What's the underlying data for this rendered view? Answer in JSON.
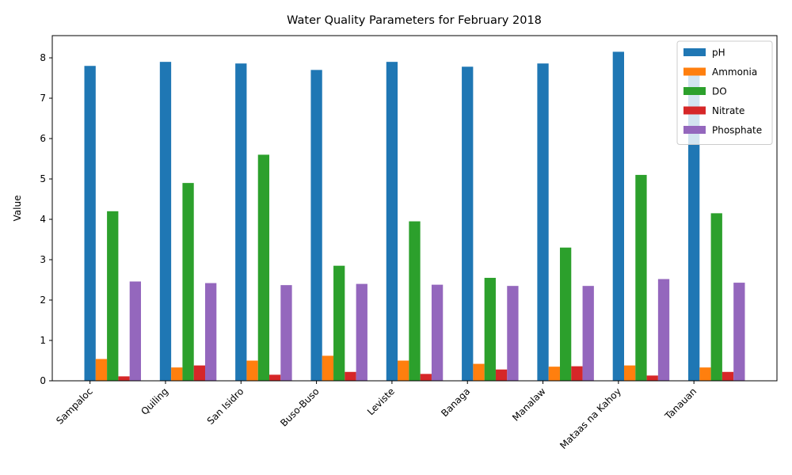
{
  "chart_data": {
    "type": "bar",
    "title": "Water Quality Parameters for February 2018",
    "xlabel": "",
    "ylabel": "Value",
    "ylim": [
      0,
      8.55
    ],
    "yticks": [
      "0",
      "1",
      "2",
      "3",
      "4",
      "5",
      "6",
      "7",
      "8"
    ],
    "grid": false,
    "legend_position": "top-right",
    "categories": [
      "Sampaloc",
      "Quiling",
      "San Isidro",
      "Buso-Buso",
      "Leviste",
      "Banaga",
      "Manalaw",
      "Mataas na Kahoy",
      "Tanauan"
    ],
    "series": [
      {
        "name": "pH",
        "color": "#1f77b4",
        "values": [
          7.8,
          7.9,
          7.86,
          7.7,
          7.9,
          7.78,
          7.86,
          8.15,
          7.75
        ]
      },
      {
        "name": "Ammonia",
        "color": "#ff7f0e",
        "values": [
          0.54,
          0.33,
          0.5,
          0.62,
          0.5,
          0.42,
          0.35,
          0.38,
          0.33
        ]
      },
      {
        "name": "DO",
        "color": "#2ca02c",
        "values": [
          4.2,
          4.9,
          5.6,
          2.85,
          3.95,
          2.55,
          3.3,
          5.1,
          4.15
        ]
      },
      {
        "name": "Nitrate",
        "color": "#d62728",
        "values": [
          0.11,
          0.38,
          0.15,
          0.22,
          0.17,
          0.28,
          0.36,
          0.13,
          0.22
        ]
      },
      {
        "name": "Phosphate",
        "color": "#9467bd",
        "values": [
          2.46,
          2.42,
          2.37,
          2.4,
          2.38,
          2.35,
          2.35,
          2.52,
          2.43
        ]
      }
    ]
  }
}
